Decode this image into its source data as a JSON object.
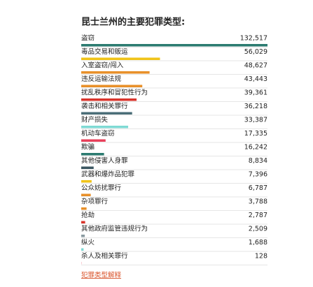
{
  "chart_data": {
    "type": "bar",
    "title": "昆士兰州的主要犯罪类型:",
    "categories": [
      "盗窃",
      "毒品交易和贩运",
      "入室盗窃/闯入",
      "违反运输法规",
      "扰乱秩序和冒犯性行为",
      "袭击和相关罪行",
      "财产损失",
      "机动车盗窃",
      "欺骗",
      "其他侵害人身罪",
      "武器和爆炸品犯罪",
      "公众妨扰罪行",
      "杂项罪行",
      "抢劫",
      "其他政府监管违规行为",
      "纵火",
      "杀人及相关罪行"
    ],
    "values": [
      132517,
      56029,
      48627,
      43443,
      39361,
      36218,
      33387,
      17335,
      16242,
      8834,
      7396,
      6787,
      3788,
      2787,
      2509,
      1688,
      128
    ],
    "value_labels": [
      "132,517",
      "56,029",
      "48,627",
      "43,443",
      "39,361",
      "36,218",
      "33,387",
      "17,335",
      "16,242",
      "8,834",
      "7,396",
      "6,787",
      "3,788",
      "2,787",
      "2,509",
      "1,688",
      "128"
    ],
    "colors": [
      "#2b7b70",
      "#f0c419",
      "#e8902a",
      "#e8902a",
      "#d9342b",
      "#4b6e78",
      "#7fdad4",
      "#e8405a",
      "#2b7b70",
      "#3b5661",
      "#f0c419",
      "#e8902a",
      "#e8902a",
      "#d9342b",
      "#8a9aa0",
      "#7fdad4",
      "#e8405a"
    ],
    "link": "犯罪类型解释"
  }
}
